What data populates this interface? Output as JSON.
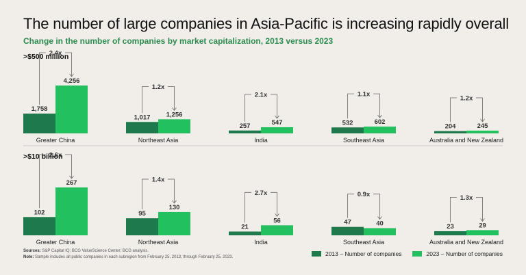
{
  "title": "The number of large companies in Asia-Pacific is increasing rapidly overall",
  "subtitle": "Change in the number of companies by market capitalization, 2013 versus 2023",
  "colors": {
    "s2013": "#1e7a4c",
    "s2023": "#22c05f",
    "axis": "#c9c9c9",
    "bracket": "#666666"
  },
  "legend": {
    "s2013": "2013 – Number of companies",
    "s2023": "2023 – Number of companies"
  },
  "footer": {
    "sources_label": "Sources:",
    "sources_text": " S&P Capital IQ; BCG ValueScience Center; BCG analysis.",
    "note_label": "Note:",
    "note_text": " Sample includes all public companies in each subregion from February 25, 2013, through February 25, 2023."
  },
  "chart_data": [
    {
      "type": "bar",
      "title": ">$500 million",
      "categories": [
        "Greater China",
        "Northeast Asia",
        "India",
        "Southeast Asia",
        "Australia and New Zealand"
      ],
      "series": [
        {
          "name": "2013 – Number of companies",
          "values": [
            1758,
            1017,
            257,
            532,
            204
          ],
          "labels": [
            "1,758",
            "1,017",
            "257",
            "532",
            "204"
          ]
        },
        {
          "name": "2023 – Number of companies",
          "values": [
            4256,
            1256,
            547,
            602,
            245
          ],
          "labels": [
            "4,256",
            "1,256",
            "547",
            "602",
            "245"
          ]
        }
      ],
      "multipliers": [
        "2.4x",
        "1.2x",
        "2.1x",
        "1.1x",
        "1.2x"
      ],
      "ylim": [
        0,
        4256
      ]
    },
    {
      "type": "bar",
      "title": ">$10 billion",
      "categories": [
        "Greater China",
        "Northeast Asia",
        "India",
        "Southeast Asia",
        "Australia and New Zealand"
      ],
      "series": [
        {
          "name": "2013 – Number of companies",
          "values": [
            102,
            95,
            21,
            47,
            23
          ],
          "labels": [
            "102",
            "95",
            "21",
            "47",
            "23"
          ]
        },
        {
          "name": "2023 – Number of companies",
          "values": [
            267,
            130,
            56,
            40,
            29
          ],
          "labels": [
            "267",
            "130",
            "56",
            "40",
            "29"
          ]
        }
      ],
      "multipliers": [
        "2.6x",
        "1.4x",
        "2.7x",
        "0.9x",
        "1.3x"
      ],
      "ylim": [
        0,
        267
      ]
    }
  ]
}
